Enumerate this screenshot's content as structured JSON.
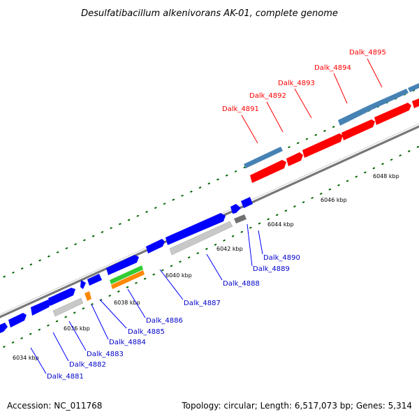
{
  "title": "Desulfatibacillum alkenivorans AK-01, complete genome",
  "footer": {
    "accession": "Accession: NC_011768",
    "summary": "Topology: circular; Length: 6,517,073 bp; Genes: 5,314"
  },
  "scale_labels": [
    "6034 kbp",
    "6036 kbp",
    "6038 kbp",
    "6040 kbp",
    "6042 kbp",
    "6044 kbp",
    "6046 kbp",
    "6048 kbp"
  ],
  "gene_labels": {
    "red": [
      "Dalk_4891",
      "Dalk_4892",
      "Dalk_4893",
      "Dalk_4894",
      "Dalk_4895"
    ],
    "blue": [
      "Dalk_4881",
      "Dalk_4882",
      "Dalk_4883",
      "Dalk_4884",
      "Dalk_4885",
      "Dalk_4886",
      "Dalk_4887",
      "Dalk_4888",
      "Dalk_4889",
      "Dalk_4890"
    ]
  },
  "colors": {
    "red_operon": "#ff0000",
    "blue_genes": "#0000ff",
    "steel_blue": "#4682b4",
    "gray_feature": "#c0c0c0",
    "dark_gray_feature": "#808080",
    "green_feature": "#33cc33",
    "orange_feature": "#ff8800",
    "scale_ticks": "#006600",
    "backbone": "#888888"
  }
}
